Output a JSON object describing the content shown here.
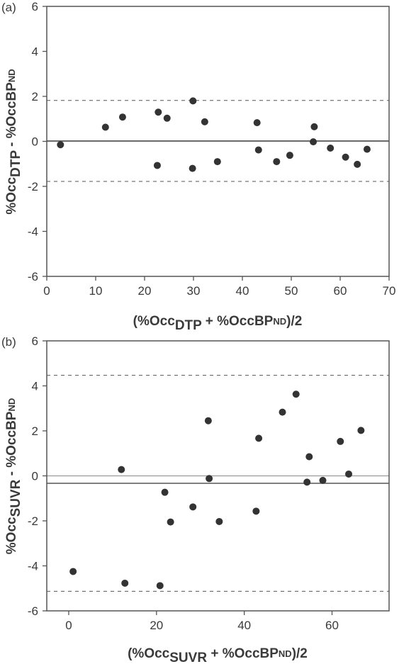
{
  "chart_data": [
    {
      "panel_label": "(a)",
      "type": "scatter",
      "xlabel": "(%Occ_DTP + %Occ_BPND)/2",
      "xlabel_parts": {
        "open": "(%Occ",
        "sub1": "DTP",
        "mid": " + %Occ",
        "main2": "BP",
        "sub2": "ND",
        "close": ")/2"
      },
      "ylabel": "%Occ_DTP - %OccBP_ND",
      "ylabel_parts": {
        "main1": "%Occ",
        "sub1": "DTP",
        "mid": " - %OccBP",
        "sub2": "ND"
      },
      "xlim": [
        0,
        70
      ],
      "ylim": [
        -6,
        6
      ],
      "xticks": [
        0,
        10,
        20,
        30,
        40,
        50,
        60,
        70
      ],
      "yticks": [
        -6,
        -4,
        -2,
        0,
        2,
        4,
        6
      ],
      "mean_line": 0.02,
      "upper_limit": 1.82,
      "lower_limit": -1.78,
      "zero_line": 0,
      "points": [
        {
          "x": 2.8,
          "y": -0.15
        },
        {
          "x": 12.0,
          "y": 0.63
        },
        {
          "x": 15.5,
          "y": 1.08
        },
        {
          "x": 22.8,
          "y": 1.3
        },
        {
          "x": 24.6,
          "y": 1.03
        },
        {
          "x": 22.6,
          "y": -1.07
        },
        {
          "x": 29.9,
          "y": 1.8
        },
        {
          "x": 29.8,
          "y": -1.2
        },
        {
          "x": 32.3,
          "y": 0.87
        },
        {
          "x": 34.9,
          "y": -0.9
        },
        {
          "x": 43.0,
          "y": 0.83
        },
        {
          "x": 43.3,
          "y": -0.38
        },
        {
          "x": 47.0,
          "y": -0.9
        },
        {
          "x": 49.7,
          "y": -0.62
        },
        {
          "x": 54.7,
          "y": 0.65
        },
        {
          "x": 54.5,
          "y": -0.02
        },
        {
          "x": 58.0,
          "y": -0.3
        },
        {
          "x": 61.1,
          "y": -0.7
        },
        {
          "x": 63.5,
          "y": -1.02
        },
        {
          "x": 65.5,
          "y": -0.35
        }
      ]
    },
    {
      "panel_label": "(b)",
      "type": "scatter",
      "xlabel": "(%Occ_SUVR + %Occ_BPND)/2",
      "xlabel_parts": {
        "open": "(%Occ",
        "sub1": "SUVR",
        "mid": " + %Occ",
        "main2": "BP",
        "sub2": "ND",
        "close": ")/2"
      },
      "ylabel": "%Occ_SUVR - %OccBP_ND",
      "ylabel_parts": {
        "main1": "%Occ",
        "sub1": "SUVR",
        "mid": " - %OccBP",
        "sub2": "ND"
      },
      "xlim": [
        -5,
        73
      ],
      "ylim": [
        -6,
        6
      ],
      "xticks": [
        0,
        20,
        40,
        60
      ],
      "yticks": [
        -6,
        -4,
        -2,
        0,
        2,
        4,
        6
      ],
      "mean_line": -0.33,
      "upper_limit": 4.47,
      "lower_limit": -5.13,
      "zero_line": 0,
      "points": [
        {
          "x": 1.0,
          "y": -4.25
        },
        {
          "x": 12.0,
          "y": 0.28
        },
        {
          "x": 12.8,
          "y": -4.77
        },
        {
          "x": 20.8,
          "y": -4.88
        },
        {
          "x": 21.9,
          "y": -0.73
        },
        {
          "x": 23.2,
          "y": -2.05
        },
        {
          "x": 28.3,
          "y": -1.38
        },
        {
          "x": 31.8,
          "y": 2.45
        },
        {
          "x": 32.0,
          "y": -0.12
        },
        {
          "x": 34.3,
          "y": -2.03
        },
        {
          "x": 42.7,
          "y": -1.57
        },
        {
          "x": 43.3,
          "y": 1.67
        },
        {
          "x": 48.7,
          "y": 2.83
        },
        {
          "x": 51.8,
          "y": 3.63
        },
        {
          "x": 54.3,
          "y": -0.28
        },
        {
          "x": 54.8,
          "y": 0.85
        },
        {
          "x": 57.9,
          "y": -0.2
        },
        {
          "x": 61.9,
          "y": 1.53
        },
        {
          "x": 63.8,
          "y": 0.08
        },
        {
          "x": 66.6,
          "y": 2.02
        }
      ]
    }
  ]
}
